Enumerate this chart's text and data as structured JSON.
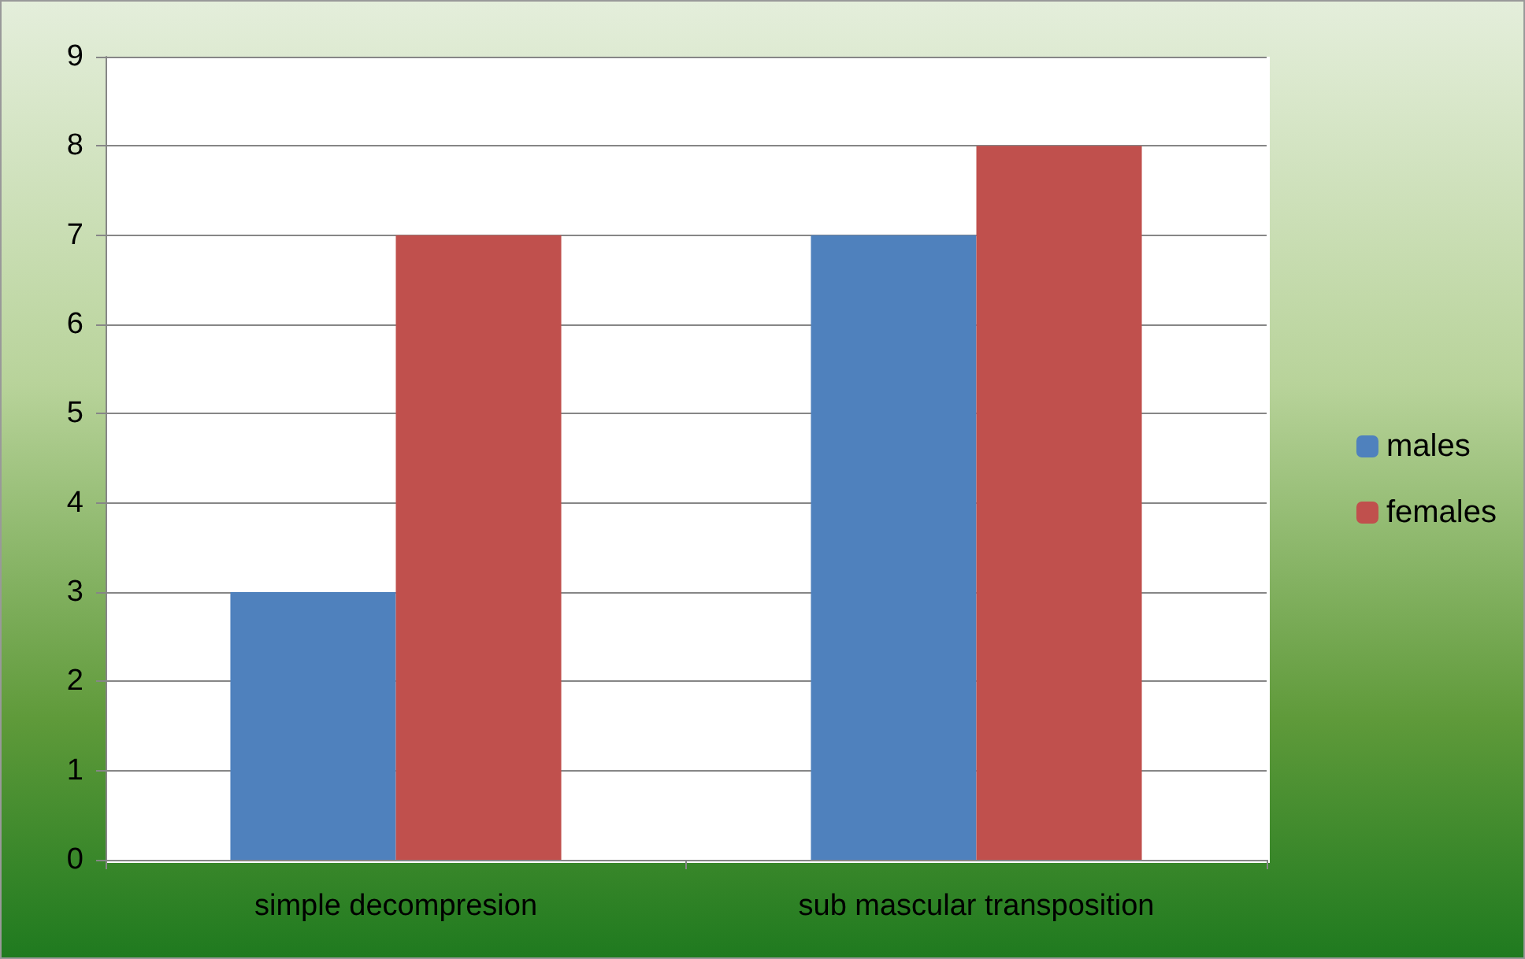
{
  "chart_data": {
    "type": "bar",
    "categories": [
      "simple decompresion",
      "sub mascular transposition"
    ],
    "series": [
      {
        "name": "males",
        "color": "#4f81bd",
        "values": [
          3,
          7
        ]
      },
      {
        "name": "females",
        "color": "#c0504d",
        "values": [
          7,
          8
        ]
      }
    ],
    "ylim": [
      0,
      9
    ],
    "yticks": [
      0,
      1,
      2,
      3,
      4,
      5,
      6,
      7,
      8,
      9
    ],
    "grid": "y",
    "legend": "right"
  }
}
